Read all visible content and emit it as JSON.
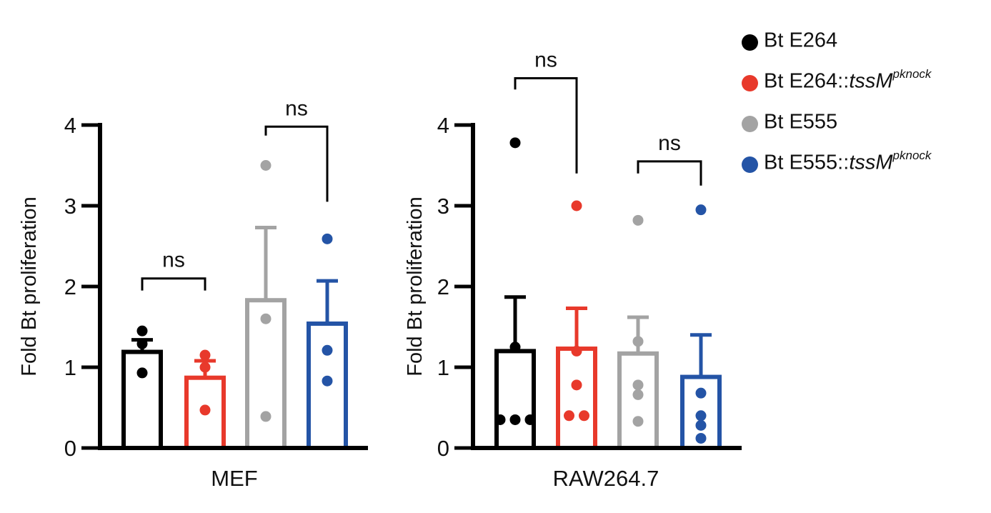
{
  "legend": [
    {
      "name": "Bt E264",
      "base": "Bt E264",
      "italic": "",
      "sup": "",
      "color": "#000000"
    },
    {
      "name": "Bt E264::tssMpknock",
      "base": "Bt E264::",
      "italic": "tssM",
      "sup": "pknock",
      "color": "#e8392b"
    },
    {
      "name": "Bt E555",
      "base": "Bt E555",
      "italic": "",
      "sup": "",
      "color": "#a3a3a3"
    },
    {
      "name": "Bt E555::tssMpknock",
      "base": "Bt E555::",
      "italic": "tssM",
      "sup": "pknock",
      "color": "#2454a6"
    }
  ],
  "chart_data": [
    {
      "type": "bar",
      "xlabel": "MEF",
      "ylabel": "Fold Bt proliferation",
      "ylim": [
        0,
        4
      ],
      "yticks": [
        "0",
        "1",
        "2",
        "3",
        "4"
      ],
      "groups": [
        {
          "series": "Bt E264",
          "color": "#000000",
          "mean": 1.19,
          "sem_upper": 1.34,
          "points": [
            1.45,
            1.29,
            0.93
          ]
        },
        {
          "series": "Bt E264::tssMpknock",
          "color": "#e8392b",
          "mean": 0.87,
          "sem_upper": 1.08,
          "points": [
            1.15,
            1.0,
            0.47
          ]
        },
        {
          "series": "Bt E555",
          "color": "#a3a3a3",
          "mean": 1.83,
          "sem_upper": 2.73,
          "points": [
            3.5,
            1.6,
            0.39
          ]
        },
        {
          "series": "Bt E555::tssMpknock",
          "color": "#2454a6",
          "mean": 1.54,
          "sem_upper": 2.07,
          "points": [
            2.59,
            1.21,
            0.83
          ]
        }
      ],
      "annotations": [
        {
          "text": "ns",
          "from": 0,
          "to": 1,
          "y_top": 2.1,
          "y_left": 1.95,
          "y_right": 1.95
        },
        {
          "text": "ns",
          "from": 2,
          "to": 3,
          "y_top": 3.98,
          "y_left": 3.87,
          "y_right": 3.05
        }
      ]
    },
    {
      "type": "bar",
      "xlabel": "RAW264.7",
      "ylabel": "Fold Bt proliferation",
      "ylim": [
        0,
        4
      ],
      "yticks": [
        "0",
        "1",
        "2",
        "3",
        "4"
      ],
      "groups": [
        {
          "series": "Bt E264",
          "color": "#000000",
          "mean": 1.2,
          "sem_upper": 1.87,
          "points": [
            3.78,
            1.25,
            0.35,
            0.35,
            0.35
          ]
        },
        {
          "series": "Bt E264::tssMpknock",
          "color": "#e8392b",
          "mean": 1.23,
          "sem_upper": 1.73,
          "points": [
            3.0,
            1.2,
            0.78,
            0.4,
            0.4
          ]
        },
        {
          "series": "Bt E555",
          "color": "#a3a3a3",
          "mean": 1.17,
          "sem_upper": 1.62,
          "points": [
            2.82,
            1.32,
            0.78,
            0.66,
            0.33
          ]
        },
        {
          "series": "Bt E555::tssMpknock",
          "color": "#2454a6",
          "mean": 0.88,
          "sem_upper": 1.4,
          "points": [
            2.95,
            0.68,
            0.4,
            0.28,
            0.12
          ]
        }
      ],
      "annotations": [
        {
          "text": "ns",
          "from": 0,
          "to": 1,
          "y_top": 4.58,
          "y_left": 4.44,
          "y_right": 3.4
        },
        {
          "text": "ns",
          "from": 2,
          "to": 3,
          "y_top": 3.55,
          "y_left": 3.4,
          "y_right": 3.25
        }
      ]
    }
  ]
}
